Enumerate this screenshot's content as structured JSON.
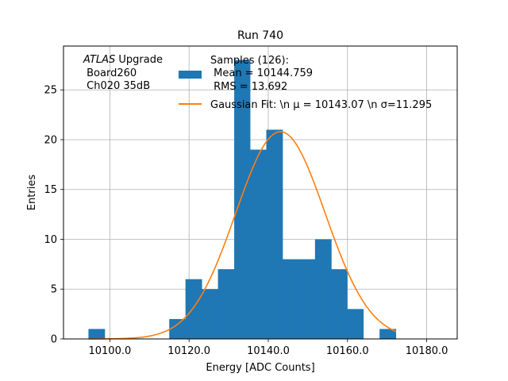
{
  "chart_data": {
    "type": "bar",
    "title": "Run 740",
    "xlabel": "Energy [ADC Counts]",
    "ylabel": "Entries",
    "xlim": [
      10088.3,
      10187.7
    ],
    "ylim": [
      0,
      29.4
    ],
    "xticks": [
      10100,
      10120,
      10140,
      10160,
      10180
    ],
    "xtick_labels": [
      "10100.0",
      "10120.0",
      "10140.0",
      "10160.0",
      "10180.0"
    ],
    "yticks": [
      0,
      5,
      10,
      15,
      20,
      25
    ],
    "ytick_labels": [
      "0",
      "5",
      "10",
      "15",
      "20",
      "25"
    ],
    "grid": true,
    "histogram": {
      "name": "Samples (126):",
      "color": "#1f77b4",
      "bins": [
        {
          "x0": 10094.6,
          "x1": 10098.7,
          "count": 1
        },
        {
          "x0": 10098.7,
          "x1": 10102.8,
          "count": 0
        },
        {
          "x0": 10102.8,
          "x1": 10106.9,
          "count": 0
        },
        {
          "x0": 10106.9,
          "x1": 10110.9,
          "count": 0
        },
        {
          "x0": 10110.9,
          "x1": 10115.0,
          "count": 0
        },
        {
          "x0": 10115.0,
          "x1": 10119.1,
          "count": 2
        },
        {
          "x0": 10119.1,
          "x1": 10123.2,
          "count": 6
        },
        {
          "x0": 10123.2,
          "x1": 10127.3,
          "count": 5
        },
        {
          "x0": 10127.3,
          "x1": 10131.4,
          "count": 7
        },
        {
          "x0": 10131.4,
          "x1": 10135.4,
          "count": 28
        },
        {
          "x0": 10135.4,
          "x1": 10139.5,
          "count": 19
        },
        {
          "x0": 10139.5,
          "x1": 10143.6,
          "count": 21
        },
        {
          "x0": 10143.6,
          "x1": 10147.7,
          "count": 8
        },
        {
          "x0": 10147.7,
          "x1": 10151.8,
          "count": 8
        },
        {
          "x0": 10151.8,
          "x1": 10155.9,
          "count": 10
        },
        {
          "x0": 10155.9,
          "x1": 10159.9,
          "count": 7
        },
        {
          "x0": 10159.9,
          "x1": 10164.0,
          "count": 3
        },
        {
          "x0": 10164.0,
          "x1": 10168.1,
          "count": 0
        },
        {
          "x0": 10168.1,
          "x1": 10172.2,
          "count": 1
        }
      ]
    },
    "fit": {
      "type": "gaussian",
      "color": "#ff7f0e",
      "mu": 10143.07,
      "sigma": 11.295,
      "amplitude": 20.8,
      "x_range": [
        10094.6,
        10172.2
      ]
    },
    "legend": {
      "placement": "top-right",
      "histogram_lines": [
        "Samples (126):",
        " Mean = 10144.759",
        " RMS = 13.692"
      ],
      "fit_label": "Gaussian Fit: \\n μ = 10143.07 \\n σ=11.295"
    },
    "annotation": {
      "lines": [
        "ATLAS",
        " Upgrade",
        " Board260",
        " Ch020 35dB"
      ]
    }
  }
}
